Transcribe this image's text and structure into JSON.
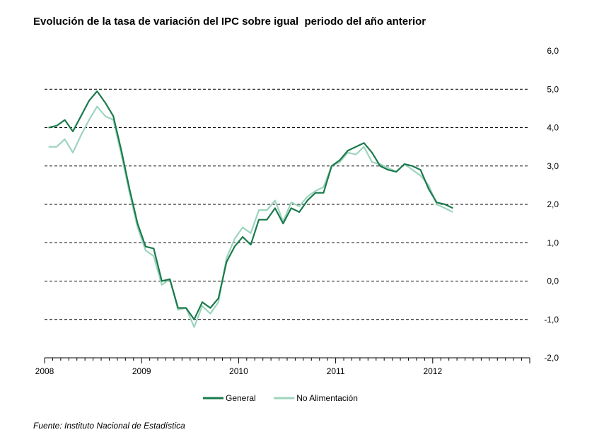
{
  "title": "Evolución de la tasa de variación del IPC sobre igual  periodo del año anterior",
  "source": "Fuente: Instituto Nacional de Estadística",
  "chart_data": {
    "type": "line",
    "title": "Evolución de la tasa de variación del IPC sobre igual  periodo del año anterior",
    "xlabel": "",
    "ylabel": "",
    "ylim": [
      -2.0,
      6.0
    ],
    "y_ticks": [
      "-2,0",
      "-1,0",
      "0,0",
      "1,0",
      "2,0",
      "3,0",
      "4,0",
      "5,0",
      "6,0"
    ],
    "x_tick_labels": [
      "2008",
      "2009",
      "2010",
      "2011",
      "2012"
    ],
    "axis_position": "right",
    "grid": "dashed horizontal",
    "legend_position": "bottom-center",
    "x": [
      "2008-01",
      "2008-02",
      "2008-03",
      "2008-04",
      "2008-05",
      "2008-06",
      "2008-07",
      "2008-08",
      "2008-09",
      "2008-10",
      "2008-11",
      "2008-12",
      "2009-01",
      "2009-02",
      "2009-03",
      "2009-04",
      "2009-05",
      "2009-06",
      "2009-07",
      "2009-08",
      "2009-09",
      "2009-10",
      "2009-11",
      "2009-12",
      "2010-01",
      "2010-02",
      "2010-03",
      "2010-04",
      "2010-05",
      "2010-06",
      "2010-07",
      "2010-08",
      "2010-09",
      "2010-10",
      "2010-11",
      "2010-12",
      "2011-01",
      "2011-02",
      "2011-03",
      "2011-04",
      "2011-05",
      "2011-06",
      "2011-07",
      "2011-08",
      "2011-09",
      "2011-10",
      "2011-11",
      "2011-12",
      "2012-01",
      "2012-02",
      "2012-03"
    ],
    "series": [
      {
        "name": "General",
        "color": "#1a7a4c",
        "values": [
          4.0,
          4.05,
          4.2,
          3.9,
          4.3,
          4.7,
          4.95,
          4.65,
          4.3,
          3.4,
          2.4,
          1.5,
          0.9,
          0.85,
          0.0,
          0.05,
          -0.7,
          -0.7,
          -1.0,
          -0.55,
          -0.7,
          -0.45,
          0.5,
          0.9,
          1.15,
          0.95,
          1.6,
          1.6,
          1.9,
          1.5,
          1.9,
          1.8,
          2.1,
          2.3,
          2.3,
          3.0,
          3.15,
          3.4,
          3.5,
          3.6,
          3.35,
          3.0,
          2.9,
          2.85,
          3.05,
          3.0,
          2.9,
          2.4,
          2.05,
          2.0,
          1.9
        ]
      },
      {
        "name": "No Alimentación",
        "color": "#9ed4be",
        "values": [
          3.5,
          3.5,
          3.7,
          3.35,
          3.8,
          4.2,
          4.55,
          4.3,
          4.2,
          3.3,
          2.3,
          1.4,
          0.8,
          0.65,
          -0.1,
          0.05,
          -0.75,
          -0.7,
          -1.2,
          -0.65,
          -0.85,
          -0.55,
          0.6,
          1.1,
          1.4,
          1.25,
          1.85,
          1.85,
          2.1,
          1.55,
          2.05,
          1.95,
          2.2,
          2.35,
          2.45,
          3.0,
          3.1,
          3.35,
          3.3,
          3.5,
          3.1,
          3.05,
          2.95,
          2.85,
          3.05,
          2.9,
          2.75,
          2.5,
          2.0,
          1.9,
          1.8
        ]
      }
    ]
  }
}
